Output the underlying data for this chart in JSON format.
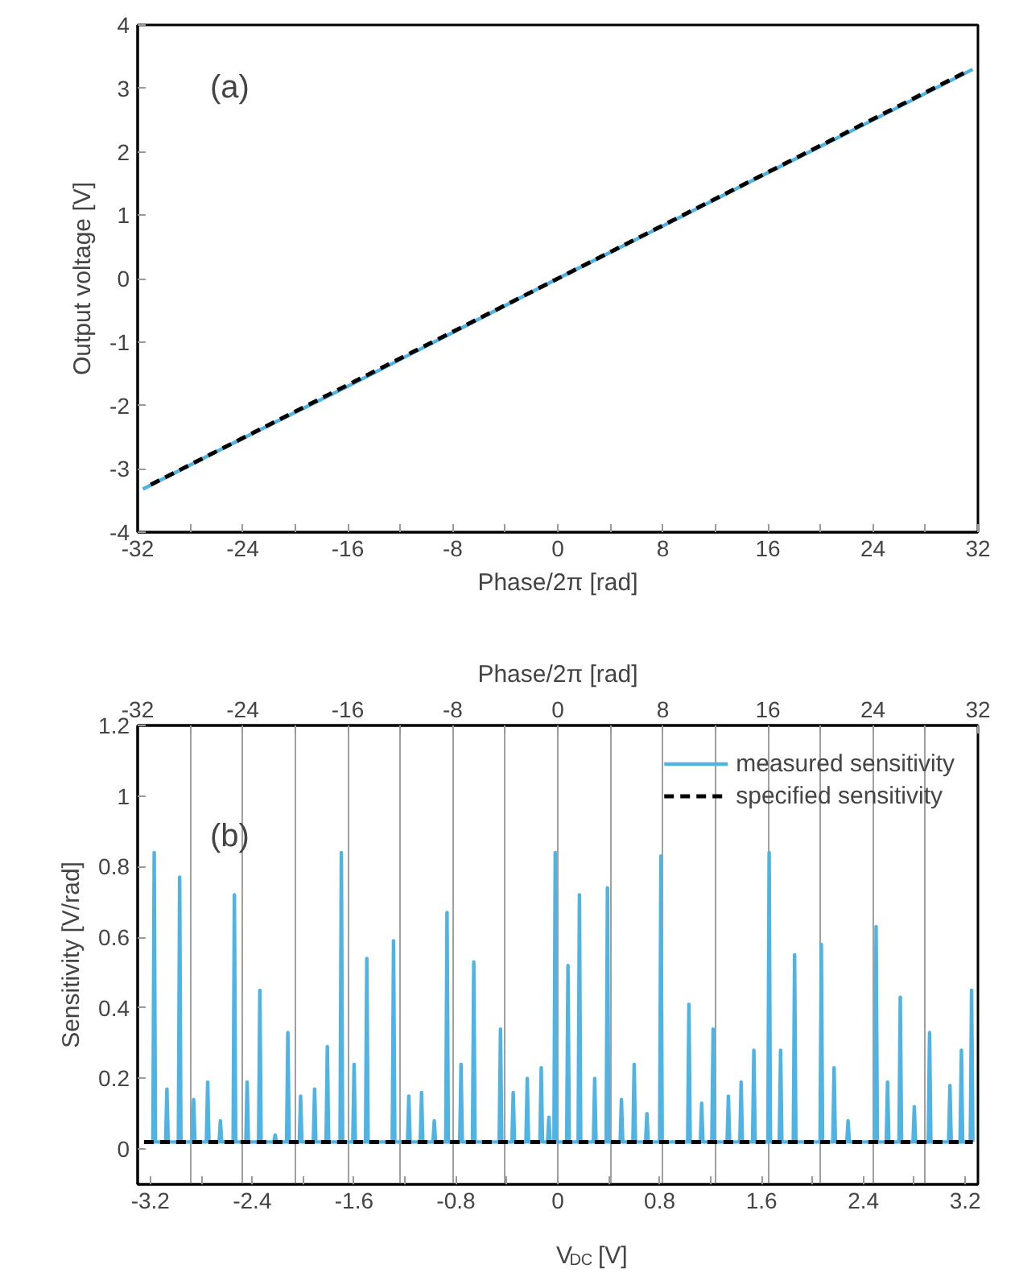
{
  "chart_data": [
    {
      "type": "line",
      "xlabel": "Phase/2π [rad]",
      "ylabel": "Output voltage [V]",
      "annotations": [
        "(a)"
      ],
      "xlim": [
        -32,
        32
      ],
      "xticks": [
        -32,
        {
          "value": -28,
          "label": null
        },
        -24,
        {
          "value": -20,
          "label": null
        },
        -16,
        {
          "value": -12,
          "label": null
        },
        -8,
        {
          "value": -4,
          "label": null
        },
        0,
        {
          "value": 4,
          "label": null
        },
        8,
        {
          "value": 12,
          "label": null
        },
        16,
        {
          "value": 20,
          "label": null
        },
        24,
        {
          "value": 28,
          "label": null
        },
        32
      ],
      "ylim": [
        -4,
        4
      ],
      "yticks": [
        -4,
        -3,
        -2,
        -1,
        0,
        1,
        2,
        3,
        4
      ],
      "grid": false,
      "legend": false,
      "series": [
        {
          "color": "#4fb3e4",
          "line_style": "solid",
          "x": [
            -31.6,
            -24,
            -16,
            -8,
            0,
            8,
            16,
            24,
            31.6
          ],
          "values": [
            -3.32,
            -2.52,
            -1.7,
            -0.85,
            0,
            0.83,
            1.67,
            2.5,
            3.3
          ]
        },
        {
          "color": "#000000",
          "line_style": "dashed",
          "x": [
            -31,
            31
          ],
          "values": [
            -3.25,
            3.25
          ]
        }
      ]
    },
    {
      "type": "line",
      "xlabel": "V$_{DC}$ [V]",
      "ylabel": "Sensitivity [V/rad]",
      "x2label": "Phase/2π [rad]",
      "annotations": [
        "(b)"
      ],
      "xlim": [
        -3.3,
        3.3
      ],
      "xticks": [
        -3.2,
        {
          "value": -2.8,
          "label": null
        },
        -2.4,
        {
          "value": -2.0,
          "label": null
        },
        -1.6,
        {
          "value": -1.2,
          "label": null
        },
        -0.8,
        {
          "value": -0.4,
          "label": null
        },
        0,
        {
          "value": 0.4,
          "label": null
        },
        0.8,
        {
          "value": 1.2,
          "label": null
        },
        1.6,
        {
          "value": 2.0,
          "label": null
        },
        2.4,
        {
          "value": 2.8,
          "label": null
        },
        3.2
      ],
      "x2lim": [
        -32,
        32
      ],
      "x2ticks": [
        -32,
        {
          "value": -28,
          "label": null
        },
        -24,
        {
          "value": -20,
          "label": null
        },
        -16,
        {
          "value": -12,
          "label": null
        },
        -8,
        {
          "value": -4,
          "label": null
        },
        0,
        {
          "value": 4,
          "label": null
        },
        8,
        {
          "value": 12,
          "label": null
        },
        16,
        {
          "value": 20,
          "label": null
        },
        24,
        {
          "value": 28,
          "label": null
        },
        32
      ],
      "ylim": [
        -0.1,
        1.2
      ],
      "yticks": [
        0,
        0.2,
        0.4,
        0.6,
        0.8,
        1,
        1.2
      ],
      "grid": "x",
      "legend": "top right",
      "series": [
        {
          "name": "measured sensitivity",
          "color": "#4fb3e4",
          "line_style": "solid",
          "x": [
            -3.25,
            -3.18,
            -3.17,
            -3.16,
            -3.08,
            -3.07,
            -3.06,
            -2.98,
            -2.97,
            -2.96,
            -2.87,
            -2.86,
            -2.85,
            -2.76,
            -2.75,
            -2.74,
            -2.66,
            -2.65,
            -2.64,
            -2.55,
            -2.54,
            -2.53,
            -2.45,
            -2.44,
            -2.43,
            -2.35,
            -2.34,
            -2.33,
            -2.23,
            -2.22,
            -2.21,
            -2.13,
            -2.12,
            -2.11,
            -2.03,
            -2.02,
            -2.01,
            -1.92,
            -1.91,
            -1.9,
            -1.82,
            -1.81,
            -1.8,
            -1.71,
            -1.7,
            -1.69,
            -1.61,
            -1.6,
            -1.59,
            -1.51,
            -1.5,
            -1.49,
            -1.3,
            -1.29,
            -1.28,
            -1.18,
            -1.17,
            -1.16,
            -1.08,
            -1.07,
            -1.06,
            -0.98,
            -0.97,
            -0.96,
            -0.88,
            -0.87,
            -0.86,
            -0.77,
            -0.76,
            -0.75,
            -0.67,
            -0.66,
            -0.65,
            -0.46,
            -0.45,
            -0.44,
            -0.36,
            -0.35,
            -0.34,
            -0.25,
            -0.24,
            -0.23,
            -0.14,
            -0.13,
            -0.12,
            -0.08,
            -0.07,
            -0.06,
            -0.03,
            -0.02,
            -0.01,
            0.07,
            0.08,
            0.09,
            0.16,
            0.17,
            0.18,
            0.28,
            0.29,
            0.3,
            0.38,
            0.39,
            0.4,
            0.49,
            0.5,
            0.51,
            0.59,
            0.6,
            0.61,
            0.69,
            0.7,
            0.71,
            0.8,
            0.81,
            0.82,
            1.02,
            1.03,
            1.04,
            1.12,
            1.13,
            1.14,
            1.21,
            1.22,
            1.23,
            1.33,
            1.34,
            1.35,
            1.43,
            1.44,
            1.45,
            1.53,
            1.54,
            1.55,
            1.65,
            1.66,
            1.67,
            1.74,
            1.75,
            1.76,
            1.85,
            1.86,
            1.87,
            2.06,
            2.07,
            2.08,
            2.16,
            2.17,
            2.18,
            2.27,
            2.28,
            2.29,
            2.49,
            2.5,
            2.51,
            2.58,
            2.59,
            2.6,
            2.68,
            2.69,
            2.7,
            2.79,
            2.8,
            2.81,
            2.91,
            2.92,
            2.93,
            3.07,
            3.08,
            3.09,
            3.16,
            3.17,
            3.18,
            3.24,
            3.25,
            3.26
          ],
          "values": [
            0.02,
            0.02,
            0.84,
            0.02,
            0.02,
            0.17,
            0.02,
            0.02,
            0.77,
            0.02,
            0.02,
            0.14,
            0.02,
            0.02,
            0.19,
            0.02,
            0.02,
            0.08,
            0.02,
            0.02,
            0.72,
            0.02,
            0.02,
            0.19,
            0.02,
            0.02,
            0.45,
            0.02,
            0.02,
            0.04,
            0.02,
            0.02,
            0.33,
            0.02,
            0.02,
            0.15,
            0.02,
            0.02,
            0.17,
            0.02,
            0.02,
            0.29,
            0.02,
            0.02,
            0.84,
            0.02,
            0.02,
            0.24,
            0.02,
            0.02,
            0.54,
            0.02,
            0.02,
            0.59,
            0.02,
            0.02,
            0.15,
            0.02,
            0.02,
            0.16,
            0.02,
            0.02,
            0.08,
            0.02,
            0.02,
            0.67,
            0.02,
            0.02,
            0.24,
            0.02,
            0.02,
            0.53,
            0.02,
            0.02,
            0.34,
            0.02,
            0.02,
            0.16,
            0.02,
            0.02,
            0.2,
            0.02,
            0.02,
            0.23,
            0.02,
            0.02,
            0.09,
            0.02,
            0.02,
            0.84,
            0.02,
            0.02,
            0.52,
            0.02,
            0.02,
            0.72,
            0.02,
            0.02,
            0.2,
            0.02,
            0.02,
            0.74,
            0.02,
            0.02,
            0.14,
            0.02,
            0.02,
            0.24,
            0.02,
            0.02,
            0.1,
            0.02,
            0.02,
            0.83,
            0.02,
            0.02,
            0.41,
            0.02,
            0.02,
            0.13,
            0.02,
            0.02,
            0.34,
            0.02,
            0.02,
            0.15,
            0.02,
            0.02,
            0.19,
            0.02,
            0.02,
            0.28,
            0.02,
            0.02,
            0.84,
            0.02,
            0.02,
            0.28,
            0.02,
            0.02,
            0.55,
            0.02,
            0.02,
            0.58,
            0.02,
            0.02,
            0.23,
            0.02,
            0.02,
            0.08,
            0.02,
            0.02,
            0.63,
            0.02,
            0.02,
            0.19,
            0.02,
            0.02,
            0.43,
            0.02,
            0.02,
            0.12,
            0.02,
            0.02,
            0.33,
            0.02,
            0.02,
            0.18,
            0.02,
            0.02,
            0.28,
            0.02,
            0.02,
            0.45,
            0.02
          ]
        },
        {
          "name": "specified sensitivity",
          "color": "#000000",
          "line_style": "dashed",
          "x": [
            -3.25,
            3.26
          ],
          "values": [
            0.02,
            0.02
          ]
        }
      ]
    }
  ]
}
